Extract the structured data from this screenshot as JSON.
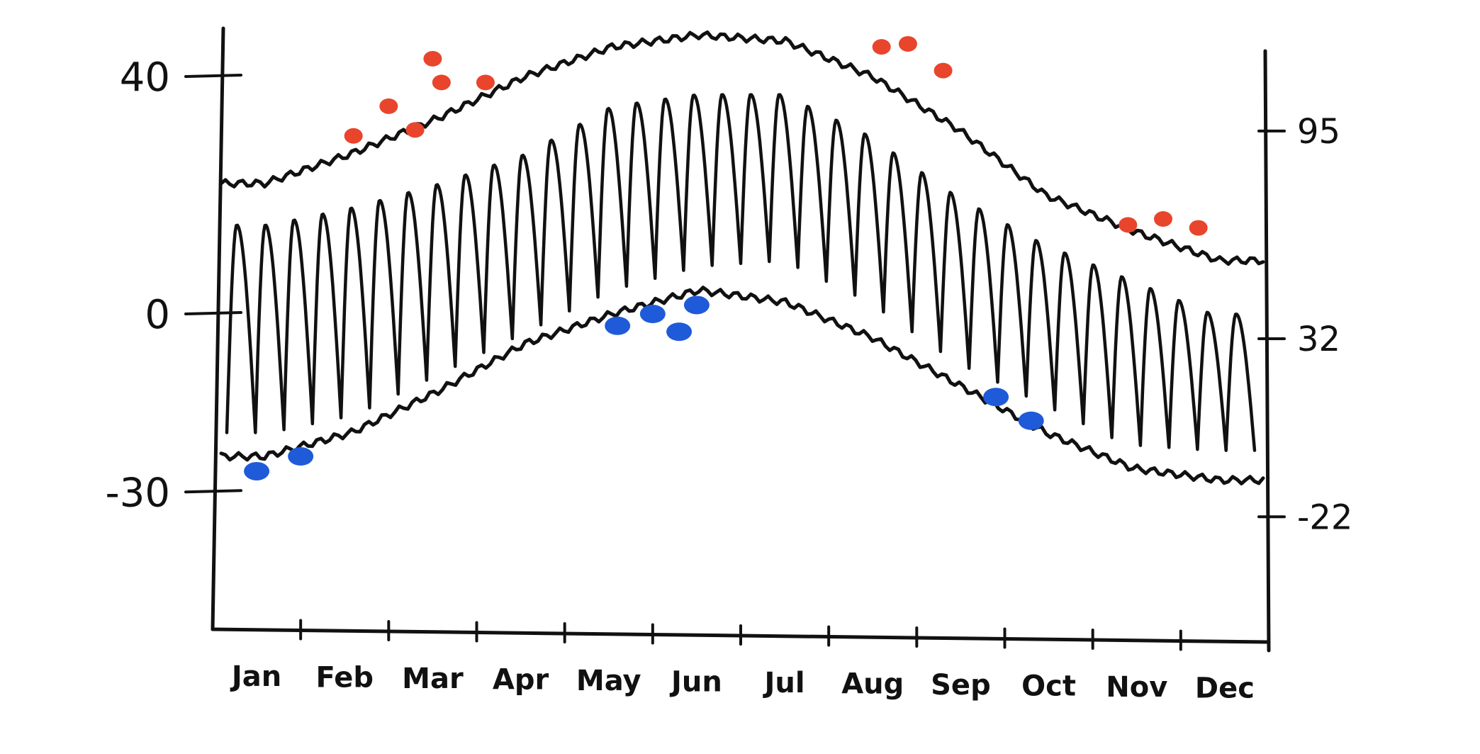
{
  "chart_data": {
    "type": "line",
    "categories": [
      "Jan",
      "Feb",
      "Mar",
      "Apr",
      "May",
      "Jun",
      "Jul",
      "Aug",
      "Sep",
      "Oct",
      "Nov",
      "Dec"
    ],
    "y_axis_left": {
      "unit": "°C",
      "ticks": [
        40,
        0,
        -30
      ],
      "range": [
        -40,
        45
      ]
    },
    "y_axis_right": {
      "unit": "°F",
      "ticks": [
        95,
        32,
        -22
      ]
    },
    "series": [
      {
        "role": "record-high-envelope",
        "values": [
          22,
          27,
          33,
          40,
          45,
          47,
          46,
          40,
          31,
          20,
          14,
          9
        ]
      },
      {
        "role": "record-low-envelope",
        "values": [
          -24,
          -20,
          -13,
          -5,
          0,
          4,
          2,
          -4,
          -12,
          -20,
          -26,
          -28
        ]
      },
      {
        "role": "daily-range",
        "high": [
          15,
          18,
          22,
          27,
          35,
          37,
          37,
          30,
          20,
          12,
          6,
          0
        ],
        "low": [
          -20,
          -17,
          -10,
          -3,
          4,
          8,
          9,
          2,
          -8,
          -15,
          -22,
          -23
        ]
      }
    ],
    "record_highs": [
      {
        "x": 1.6,
        "y": 30
      },
      {
        "x": 2.0,
        "y": 35
      },
      {
        "x": 2.3,
        "y": 31
      },
      {
        "x": 2.5,
        "y": 43
      },
      {
        "x": 2.6,
        "y": 39
      },
      {
        "x": 3.1,
        "y": 39
      },
      {
        "x": 7.6,
        "y": 45
      },
      {
        "x": 7.9,
        "y": 45.5
      },
      {
        "x": 8.3,
        "y": 41
      },
      {
        "x": 10.4,
        "y": 15
      },
      {
        "x": 10.8,
        "y": 16
      },
      {
        "x": 11.2,
        "y": 14.5
      }
    ],
    "record_lows": [
      {
        "x": 0.5,
        "y": -26.5
      },
      {
        "x": 1.0,
        "y": -24
      },
      {
        "x": 4.6,
        "y": -2
      },
      {
        "x": 5.0,
        "y": 0
      },
      {
        "x": 5.3,
        "y": -3
      },
      {
        "x": 5.5,
        "y": 1.5
      },
      {
        "x": 8.9,
        "y": -14
      },
      {
        "x": 9.3,
        "y": -18
      }
    ],
    "colors": {
      "record_high": "#e8452c",
      "record_low": "#1f5bd8",
      "line": "#111111"
    },
    "grid": false
  }
}
